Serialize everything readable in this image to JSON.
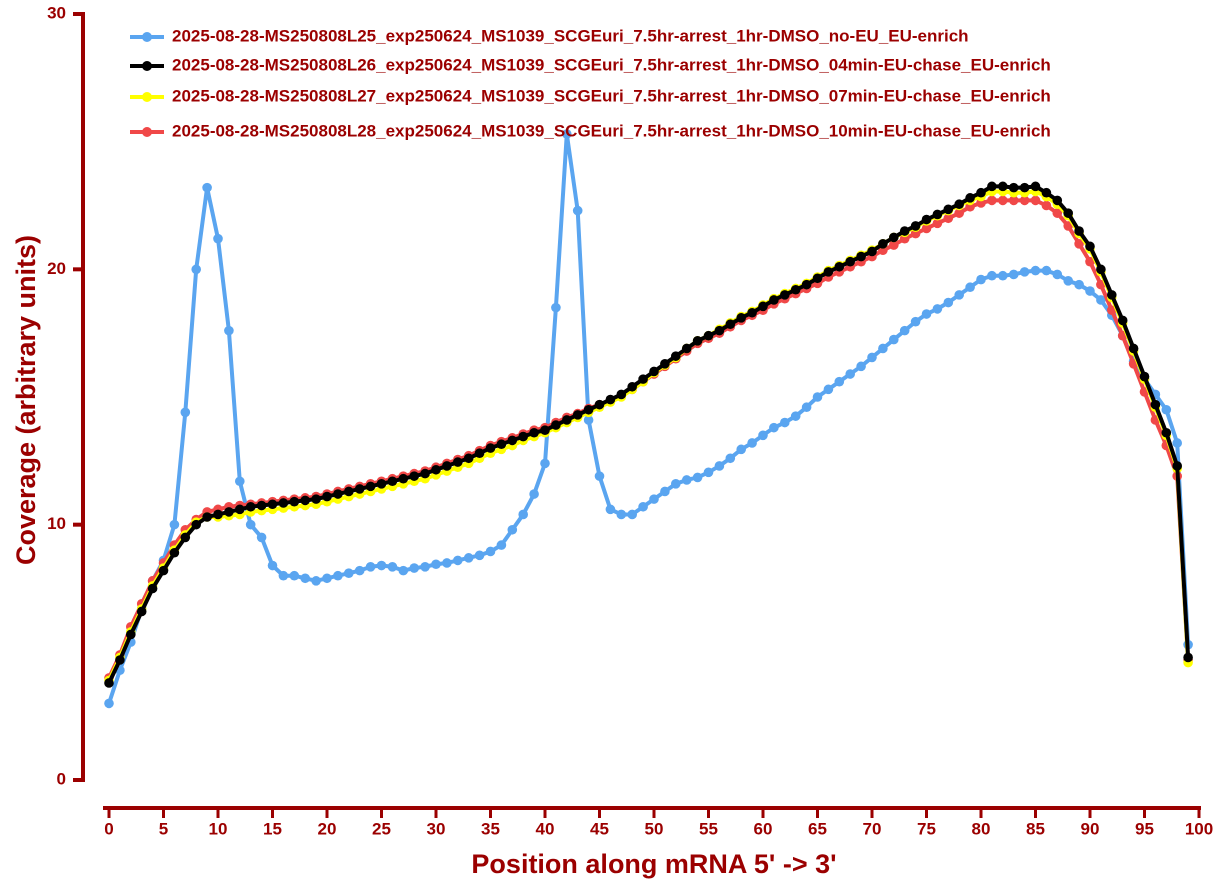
{
  "chart_data": {
    "type": "line",
    "x_label": "Position along mRNA 5' -> 3'",
    "y_label": "Coverage (arbitrary units)",
    "x": [
      0,
      1,
      2,
      3,
      4,
      5,
      6,
      7,
      8,
      9,
      10,
      11,
      12,
      13,
      14,
      15,
      16,
      17,
      18,
      19,
      20,
      21,
      22,
      23,
      24,
      25,
      26,
      27,
      28,
      29,
      30,
      31,
      32,
      33,
      34,
      35,
      36,
      37,
      38,
      39,
      40,
      41,
      42,
      43,
      44,
      45,
      46,
      47,
      48,
      49,
      50,
      51,
      52,
      53,
      54,
      55,
      56,
      57,
      58,
      59,
      60,
      61,
      62,
      63,
      64,
      65,
      66,
      67,
      68,
      69,
      70,
      71,
      72,
      73,
      74,
      75,
      76,
      77,
      78,
      79,
      80,
      81,
      82,
      83,
      84,
      85,
      86,
      87,
      88,
      89,
      90,
      91,
      92,
      93,
      94,
      95,
      96,
      97,
      98,
      99
    ],
    "xlim": [
      0,
      100
    ],
    "xticks": [
      0,
      5,
      10,
      15,
      20,
      25,
      30,
      35,
      40,
      45,
      50,
      55,
      60,
      65,
      70,
      75,
      80,
      85,
      90,
      95,
      100
    ],
    "ylim": [
      0,
      30
    ],
    "yticks": [
      0,
      10,
      20,
      30
    ],
    "series": [
      {
        "name": "2025-08-28-MS250808L25_exp250624_MS1039_SCGEuri_7.5hr-arrest_1hr-DMSO_no-EU_EU-enrich",
        "color": "#5aa5f0",
        "values": [
          3.0,
          4.3,
          5.4,
          6.7,
          7.8,
          8.6,
          10.0,
          14.4,
          20.0,
          23.2,
          21.2,
          17.6,
          11.7,
          10.0,
          9.5,
          8.4,
          8.0,
          8.0,
          7.9,
          7.8,
          7.9,
          8.0,
          8.1,
          8.2,
          8.35,
          8.4,
          8.35,
          8.2,
          8.3,
          8.35,
          8.45,
          8.5,
          8.6,
          8.7,
          8.8,
          8.95,
          9.2,
          9.8,
          10.4,
          11.2,
          12.4,
          18.5,
          25.3,
          22.3,
          14.1,
          11.9,
          10.6,
          10.4,
          10.4,
          10.7,
          11.0,
          11.3,
          11.6,
          11.75,
          11.85,
          12.05,
          12.3,
          12.6,
          12.95,
          13.2,
          13.5,
          13.8,
          14.0,
          14.25,
          14.6,
          15.0,
          15.3,
          15.6,
          15.9,
          16.2,
          16.55,
          16.9,
          17.25,
          17.6,
          17.95,
          18.25,
          18.45,
          18.7,
          19.0,
          19.3,
          19.6,
          19.75,
          19.75,
          19.8,
          19.9,
          19.95,
          19.95,
          19.8,
          19.55,
          19.4,
          19.15,
          18.8,
          18.2,
          17.4,
          16.4,
          15.7,
          15.1,
          14.5,
          13.2,
          5.3
        ]
      },
      {
        "name": "2025-08-28-MS250808L26_exp250624_MS1039_SCGEuri_7.5hr-arrest_1hr-DMSO_04min-EU-chase_EU-enrich",
        "color": "#000000",
        "values": [
          3.8,
          4.7,
          5.7,
          6.6,
          7.5,
          8.2,
          8.9,
          9.5,
          10.0,
          10.3,
          10.4,
          10.5,
          10.6,
          10.7,
          10.75,
          10.8,
          10.85,
          10.9,
          10.95,
          11.0,
          11.1,
          11.2,
          11.3,
          11.4,
          11.5,
          11.6,
          11.7,
          11.8,
          11.9,
          12.0,
          12.15,
          12.3,
          12.45,
          12.6,
          12.8,
          13.0,
          13.15,
          13.3,
          13.45,
          13.6,
          13.7,
          13.9,
          14.1,
          14.3,
          14.5,
          14.7,
          14.9,
          15.1,
          15.4,
          15.7,
          16.0,
          16.3,
          16.6,
          16.9,
          17.2,
          17.4,
          17.6,
          17.85,
          18.1,
          18.3,
          18.55,
          18.8,
          19.0,
          19.2,
          19.4,
          19.65,
          19.9,
          20.1,
          20.3,
          20.5,
          20.7,
          21.0,
          21.25,
          21.5,
          21.7,
          21.95,
          22.15,
          22.35,
          22.55,
          22.8,
          23.0,
          23.25,
          23.25,
          23.2,
          23.2,
          23.25,
          23.0,
          22.7,
          22.2,
          21.5,
          20.9,
          20.0,
          19.0,
          18.0,
          16.9,
          15.8,
          14.7,
          13.6,
          12.3,
          4.8
        ]
      },
      {
        "name": "2025-08-28-MS250808L27_exp250624_MS1039_SCGEuri_7.5hr-arrest_1hr-DMSO_07min-EU-chase_EU-enrich",
        "color": "#ffff00",
        "values": [
          3.9,
          4.8,
          5.8,
          6.7,
          7.6,
          8.3,
          9.0,
          9.6,
          10.1,
          10.3,
          10.3,
          10.35,
          10.4,
          10.5,
          10.55,
          10.6,
          10.65,
          10.7,
          10.75,
          10.8,
          10.9,
          11.0,
          11.1,
          11.2,
          11.3,
          11.4,
          11.5,
          11.6,
          11.7,
          11.8,
          11.95,
          12.1,
          12.25,
          12.4,
          12.6,
          12.8,
          12.95,
          13.1,
          13.3,
          13.45,
          13.6,
          13.8,
          14.0,
          14.2,
          14.4,
          14.6,
          14.8,
          15.0,
          15.3,
          15.6,
          15.95,
          16.25,
          16.55,
          16.9,
          17.2,
          17.4,
          17.65,
          17.9,
          18.15,
          18.35,
          18.6,
          18.85,
          19.05,
          19.25,
          19.45,
          19.7,
          19.95,
          20.15,
          20.35,
          20.55,
          20.75,
          21.0,
          21.25,
          21.45,
          21.65,
          21.9,
          22.1,
          22.3,
          22.5,
          22.7,
          22.85,
          23.05,
          23.05,
          23.0,
          23.0,
          23.05,
          22.85,
          22.55,
          22.1,
          21.4,
          20.8,
          19.9,
          18.9,
          17.9,
          16.8,
          15.7,
          14.6,
          13.5,
          12.2,
          4.6
        ]
      },
      {
        "name": "2025-08-28-MS250808L28_exp250624_MS1039_SCGEuri_7.5hr-arrest_1hr-DMSO_10min-EU-chase_EU-enrich",
        "color": "#f04848",
        "values": [
          4.0,
          4.9,
          6.0,
          6.9,
          7.8,
          8.5,
          9.2,
          9.8,
          10.2,
          10.5,
          10.6,
          10.7,
          10.75,
          10.8,
          10.85,
          10.9,
          10.95,
          11.0,
          11.05,
          11.1,
          11.2,
          11.3,
          11.4,
          11.5,
          11.6,
          11.7,
          11.8,
          11.9,
          12.0,
          12.1,
          12.25,
          12.4,
          12.55,
          12.7,
          12.9,
          13.1,
          13.25,
          13.4,
          13.55,
          13.7,
          13.8,
          14.0,
          14.2,
          14.35,
          14.55,
          14.7,
          14.85,
          15.05,
          15.3,
          15.6,
          15.9,
          16.2,
          16.5,
          16.8,
          17.1,
          17.3,
          17.5,
          17.75,
          18.0,
          18.2,
          18.4,
          18.65,
          18.85,
          19.05,
          19.25,
          19.45,
          19.7,
          19.9,
          20.1,
          20.3,
          20.5,
          20.75,
          20.95,
          21.2,
          21.4,
          21.6,
          21.8,
          22.0,
          22.2,
          22.45,
          22.6,
          22.7,
          22.7,
          22.7,
          22.7,
          22.7,
          22.5,
          22.2,
          21.7,
          21.0,
          20.3,
          19.4,
          18.4,
          17.4,
          16.3,
          15.2,
          14.1,
          13.1,
          11.9,
          4.7
        ]
      }
    ]
  }
}
